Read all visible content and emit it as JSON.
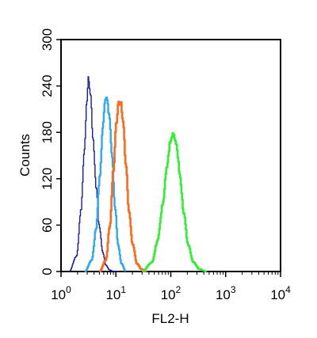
{
  "chart_data": {
    "type": "line",
    "title": "",
    "xlabel": "FL2-H",
    "ylabel": "Counts",
    "x_scale": "log",
    "xlim": [
      1,
      10000
    ],
    "ylim": [
      0,
      300
    ],
    "x_ticks": [
      {
        "base": "10",
        "exp": "0",
        "value": 1
      },
      {
        "base": "10",
        "exp": "1",
        "value": 10
      },
      {
        "base": "10",
        "exp": "2",
        "value": 100
      },
      {
        "base": "10",
        "exp": "3",
        "value": 1000
      },
      {
        "base": "10",
        "exp": "4",
        "value": 10000
      }
    ],
    "y_ticks": [
      "0",
      "60",
      "120",
      "180",
      "240",
      "300"
    ],
    "grid": false,
    "legend": "none",
    "series": [
      {
        "color": "#1a1aa6",
        "stroke": 1.4,
        "x": [
          1.4,
          1.9,
          2.3,
          2.6,
          2.9,
          3.1,
          3.4,
          3.8,
          4.3,
          4.9,
          5.7,
          6.5,
          7.6,
          9,
          11
        ],
        "y": [
          0,
          20,
          80,
          150,
          215,
          250,
          230,
          170,
          110,
          60,
          25,
          8,
          2,
          0,
          0
        ]
      },
      {
        "color": "#2fa8f2",
        "stroke": 2.4,
        "x": [
          2.7,
          3.6,
          4.3,
          5,
          5.7,
          6.3,
          6.8,
          7.5,
          8.4,
          9.5,
          10.8,
          12.5,
          15
        ],
        "y": [
          0,
          15,
          55,
          120,
          185,
          220,
          224,
          200,
          150,
          85,
          35,
          10,
          0
        ]
      },
      {
        "color": "#ff6a1a",
        "stroke": 2.6,
        "x": [
          5,
          6.5,
          7.7,
          8.9,
          10,
          11.1,
          12.1,
          13.4,
          15,
          17,
          20,
          24,
          29,
          36
        ],
        "y": [
          0,
          15,
          60,
          130,
          190,
          218,
          220,
          195,
          140,
          80,
          35,
          10,
          3,
          0
        ]
      },
      {
        "color": "#33ee33",
        "stroke": 2.6,
        "x": [
          30,
          45,
          57,
          70,
          84,
          98,
          110,
          125,
          145,
          170,
          205,
          255,
          330,
          450
        ],
        "y": [
          0,
          12,
          40,
          85,
          135,
          170,
          178,
          165,
          125,
          75,
          35,
          12,
          3,
          0
        ]
      }
    ]
  }
}
